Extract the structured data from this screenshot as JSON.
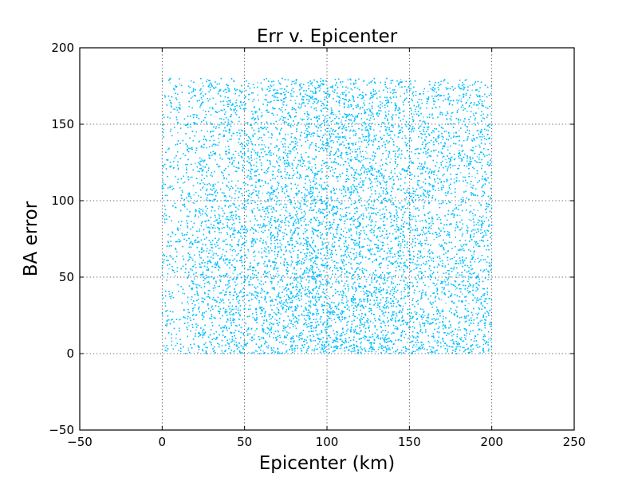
{
  "chart_data": {
    "type": "scatter",
    "title": "Err v. Epicenter",
    "xlabel": "Epicenter (km)",
    "ylabel": "BA error",
    "xlim": [
      -50,
      250
    ],
    "ylim": [
      -50,
      200
    ],
    "xticks": [
      -50,
      0,
      50,
      100,
      150,
      200,
      250
    ],
    "yticks": [
      -50,
      0,
      50,
      100,
      150,
      200
    ],
    "xtick_labels": [
      "−50",
      "0",
      "50",
      "100",
      "150",
      "200",
      "250"
    ],
    "ytick_labels": [
      "−50",
      "0",
      "50",
      "100",
      "150",
      "200"
    ],
    "grid": true,
    "series": [
      {
        "color": "#00bfff",
        "marker": "dot",
        "point_count": 30000,
        "x_range": [
          0,
          200
        ],
        "y_range": [
          0,
          180
        ],
        "density_note": "points uniformly cover x 0-200 km and y 0-180, denser near x 80-130 and y 0-60",
        "sample_points": [
          [
            2,
            10
          ],
          [
            5,
            180
          ],
          [
            10,
            2
          ],
          [
            15,
            120
          ],
          [
            20,
            60
          ],
          [
            25,
            175
          ],
          [
            30,
            30
          ],
          [
            35,
            90
          ],
          [
            40,
            150
          ],
          [
            45,
            5
          ],
          [
            50,
            100
          ],
          [
            55,
            165
          ],
          [
            60,
            45
          ],
          [
            65,
            130
          ],
          [
            70,
            15
          ],
          [
            75,
            70
          ],
          [
            80,
            178
          ],
          [
            85,
            25
          ],
          [
            90,
            110
          ],
          [
            95,
            55
          ],
          [
            100,
            140
          ],
          [
            105,
            8
          ],
          [
            110,
            80
          ],
          [
            115,
            35
          ],
          [
            120,
            160
          ],
          [
            125,
            20
          ],
          [
            130,
            95
          ],
          [
            135,
            50
          ],
          [
            140,
            170
          ],
          [
            145,
            12
          ],
          [
            150,
            125
          ],
          [
            155,
            65
          ],
          [
            160,
            40
          ],
          [
            165,
            145
          ],
          [
            170,
            18
          ],
          [
            175,
            85
          ],
          [
            180,
            175
          ],
          [
            185,
            28
          ],
          [
            190,
            115
          ],
          [
            195,
            6
          ],
          [
            200,
            150
          ]
        ]
      }
    ]
  }
}
